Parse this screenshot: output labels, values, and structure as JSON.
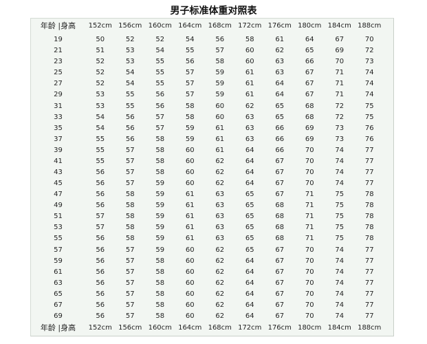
{
  "title": "男子标准体重对照表",
  "table": {
    "corner_label": "年龄 |身高",
    "heights": [
      "152cm",
      "156cm",
      "160cm",
      "164cm",
      "168cm",
      "172cm",
      "176cm",
      "180cm",
      "184cm",
      "188cm"
    ],
    "rows": [
      {
        "age": "19",
        "w": [
          "50",
          "52",
          "52",
          "54",
          "56",
          "58",
          "61",
          "64",
          "67",
          "70"
        ]
      },
      {
        "age": "21",
        "w": [
          "51",
          "53",
          "54",
          "55",
          "57",
          "60",
          "62",
          "65",
          "69",
          "72"
        ]
      },
      {
        "age": "23",
        "w": [
          "52",
          "53",
          "55",
          "56",
          "58",
          "60",
          "63",
          "66",
          "70",
          "73"
        ]
      },
      {
        "age": "25",
        "w": [
          "52",
          "54",
          "55",
          "57",
          "59",
          "61",
          "63",
          "67",
          "71",
          "74"
        ]
      },
      {
        "age": "27",
        "w": [
          "52",
          "54",
          "55",
          "57",
          "59",
          "61",
          "64",
          "67",
          "71",
          "74"
        ]
      },
      {
        "age": "29",
        "w": [
          "53",
          "55",
          "56",
          "57",
          "59",
          "61",
          "64",
          "67",
          "71",
          "74"
        ]
      },
      {
        "age": "31",
        "w": [
          "53",
          "55",
          "56",
          "58",
          "60",
          "62",
          "65",
          "68",
          "72",
          "75"
        ]
      },
      {
        "age": "33",
        "w": [
          "54",
          "56",
          "57",
          "58",
          "60",
          "63",
          "65",
          "68",
          "72",
          "75"
        ]
      },
      {
        "age": "35",
        "w": [
          "54",
          "56",
          "57",
          "59",
          "61",
          "63",
          "66",
          "69",
          "73",
          "76"
        ]
      },
      {
        "age": "37",
        "w": [
          "55",
          "56",
          "58",
          "59",
          "61",
          "63",
          "66",
          "69",
          "73",
          "76"
        ]
      },
      {
        "age": "39",
        "w": [
          "55",
          "57",
          "58",
          "60",
          "61",
          "64",
          "66",
          "70",
          "74",
          "77"
        ]
      },
      {
        "age": "41",
        "w": [
          "55",
          "57",
          "58",
          "60",
          "62",
          "64",
          "67",
          "70",
          "74",
          "77"
        ]
      },
      {
        "age": "43",
        "w": [
          "56",
          "57",
          "58",
          "60",
          "62",
          "64",
          "67",
          "70",
          "74",
          "77"
        ]
      },
      {
        "age": "45",
        "w": [
          "56",
          "57",
          "59",
          "60",
          "62",
          "64",
          "67",
          "70",
          "74",
          "77"
        ]
      },
      {
        "age": "47",
        "w": [
          "56",
          "58",
          "59",
          "61",
          "63",
          "65",
          "67",
          "71",
          "75",
          "78"
        ]
      },
      {
        "age": "49",
        "w": [
          "56",
          "58",
          "59",
          "61",
          "63",
          "65",
          "68",
          "71",
          "75",
          "78"
        ]
      },
      {
        "age": "51",
        "w": [
          "57",
          "58",
          "59",
          "61",
          "63",
          "65",
          "68",
          "71",
          "75",
          "78"
        ]
      },
      {
        "age": "53",
        "w": [
          "57",
          "58",
          "59",
          "61",
          "63",
          "65",
          "68",
          "71",
          "75",
          "78"
        ]
      },
      {
        "age": "55",
        "w": [
          "56",
          "58",
          "59",
          "61",
          "63",
          "65",
          "68",
          "71",
          "75",
          "78"
        ]
      },
      {
        "age": "57",
        "w": [
          "56",
          "57",
          "59",
          "60",
          "62",
          "65",
          "67",
          "70",
          "74",
          "77"
        ]
      },
      {
        "age": "59",
        "w": [
          "56",
          "57",
          "58",
          "60",
          "62",
          "64",
          "67",
          "70",
          "74",
          "77"
        ]
      },
      {
        "age": "61",
        "w": [
          "56",
          "57",
          "58",
          "60",
          "62",
          "64",
          "67",
          "70",
          "74",
          "77"
        ]
      },
      {
        "age": "63",
        "w": [
          "56",
          "57",
          "58",
          "60",
          "62",
          "64",
          "67",
          "70",
          "74",
          "77"
        ]
      },
      {
        "age": "65",
        "w": [
          "56",
          "57",
          "58",
          "60",
          "62",
          "64",
          "67",
          "70",
          "74",
          "77"
        ]
      },
      {
        "age": "67",
        "w": [
          "56",
          "57",
          "58",
          "60",
          "62",
          "64",
          "67",
          "70",
          "74",
          "77"
        ]
      },
      {
        "age": "69",
        "w": [
          "56",
          "57",
          "58",
          "60",
          "62",
          "64",
          "67",
          "70",
          "74",
          "77"
        ]
      }
    ]
  }
}
